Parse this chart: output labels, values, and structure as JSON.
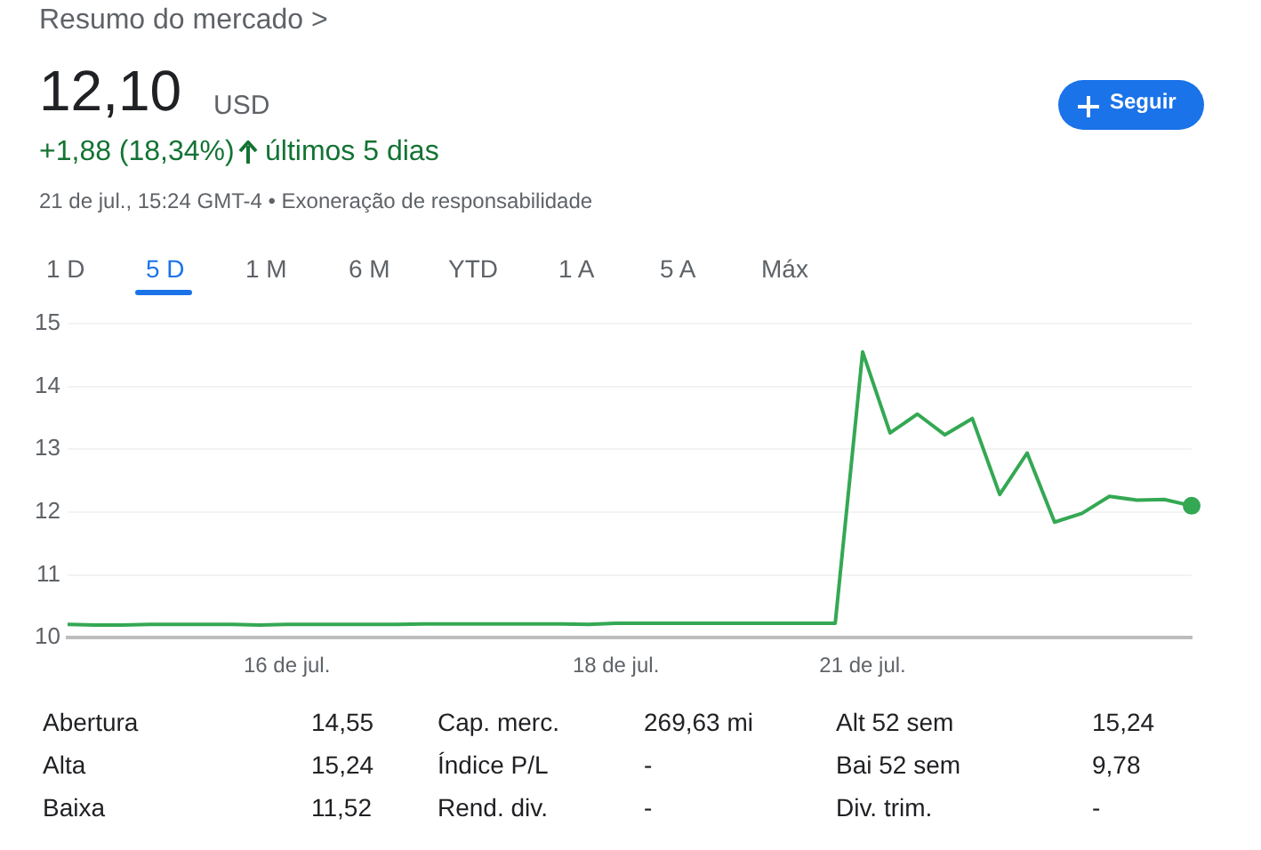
{
  "chart_data": {
    "type": "line",
    "title": "Resumo do mercado >",
    "categories": [
      null,
      null,
      null,
      null,
      null,
      null,
      null,
      null,
      "16 de jul.",
      null,
      null,
      null,
      null,
      null,
      null,
      null,
      null,
      null,
      null,
      null,
      "18 de jul.",
      null,
      null,
      null,
      null,
      null,
      null,
      null,
      null,
      "21 de jul.",
      null,
      null,
      null,
      null,
      null,
      null,
      null,
      null,
      null,
      null,
      null,
      null
    ],
    "series": [
      {
        "color": "#34a853",
        "values": [
          10.21,
          10.2,
          10.2,
          10.21,
          10.21,
          10.21,
          10.21,
          10.2,
          10.21,
          10.21,
          10.21,
          10.21,
          10.21,
          10.22,
          10.22,
          10.22,
          10.22,
          10.22,
          10.22,
          10.21,
          10.23,
          10.23,
          10.23,
          10.23,
          10.23,
          10.23,
          10.23,
          10.23,
          10.23,
          14.55,
          13.26,
          13.56,
          13.23,
          13.49,
          12.28,
          12.94,
          11.84,
          11.98,
          12.25,
          12.19,
          12.2,
          12.1
        ]
      }
    ],
    "ylim": [
      10,
      15
    ],
    "yticks": [
      10,
      11,
      12,
      13,
      14,
      15
    ],
    "grid": "y",
    "legend": false,
    "marker": "none",
    "line_style": "solid",
    "annotations": [
      "12,10",
      "USD",
      "+1,88 (18,34%)",
      "últimos 5 dias",
      "21 de jul., 15:24 GMT-4 • Exoneração de responsabilidade",
      "Seguir",
      "1 D",
      "5 D",
      "1 M",
      "6 M",
      "YTD",
      "1 A",
      "5 A",
      "Máx",
      "Abertura",
      "14,55",
      "Alta",
      "15,24",
      "Baixa",
      "11,52",
      "Cap. merc.",
      "269,63 mi",
      "Índice P/L",
      "-",
      "Rend. div.",
      "-",
      "Alt 52 sem",
      "15,24",
      "Bai 52 sem",
      "9,78",
      "Div. trim.",
      "-"
    ]
  }
}
